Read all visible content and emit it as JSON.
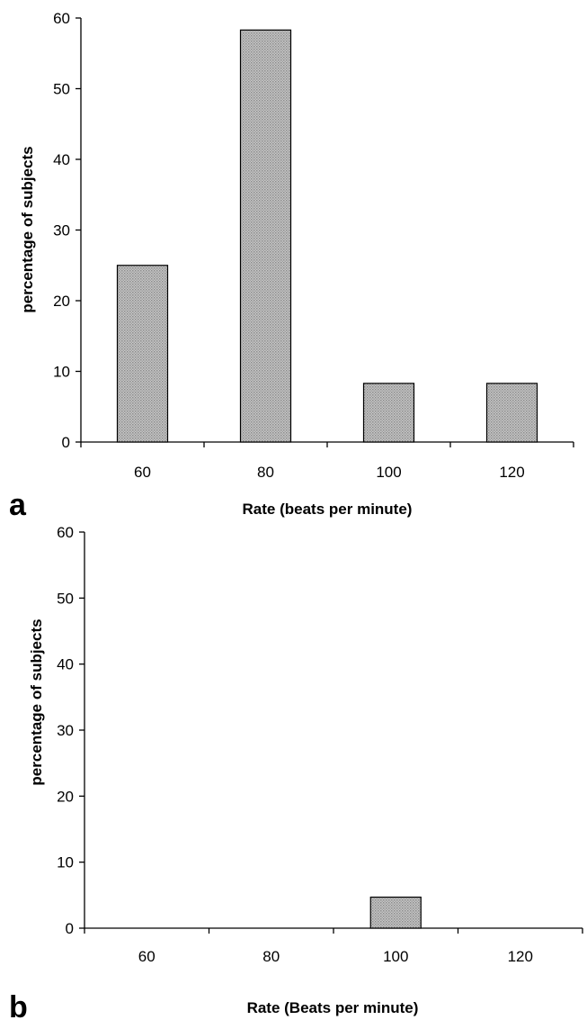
{
  "chart_data": [
    {
      "type": "bar",
      "panel_label": "a",
      "categories": [
        "60",
        "80",
        "100",
        "120"
      ],
      "values": [
        25,
        58.3,
        8.3,
        8.3
      ],
      "xlabel": "Rate (beats per minute)",
      "ylabel": "percentage of subjects",
      "ylim": [
        0,
        60
      ],
      "yticks": [
        "0",
        "10",
        "20",
        "30",
        "40",
        "50",
        "60"
      ],
      "grid": false,
      "bar_fill": "#b4b4b4"
    },
    {
      "type": "bar",
      "panel_label": "b",
      "categories": [
        "60",
        "80",
        "100",
        "120"
      ],
      "values": [
        0,
        0,
        4.7,
        0
      ],
      "xlabel": "Rate (Beats per minute)",
      "ylabel": "percentage of subjects",
      "ylim": [
        0,
        60
      ],
      "yticks": [
        "0",
        "10",
        "20",
        "30",
        "40",
        "50",
        "60"
      ],
      "grid": false,
      "bar_fill": "#b4b4b4"
    }
  ]
}
